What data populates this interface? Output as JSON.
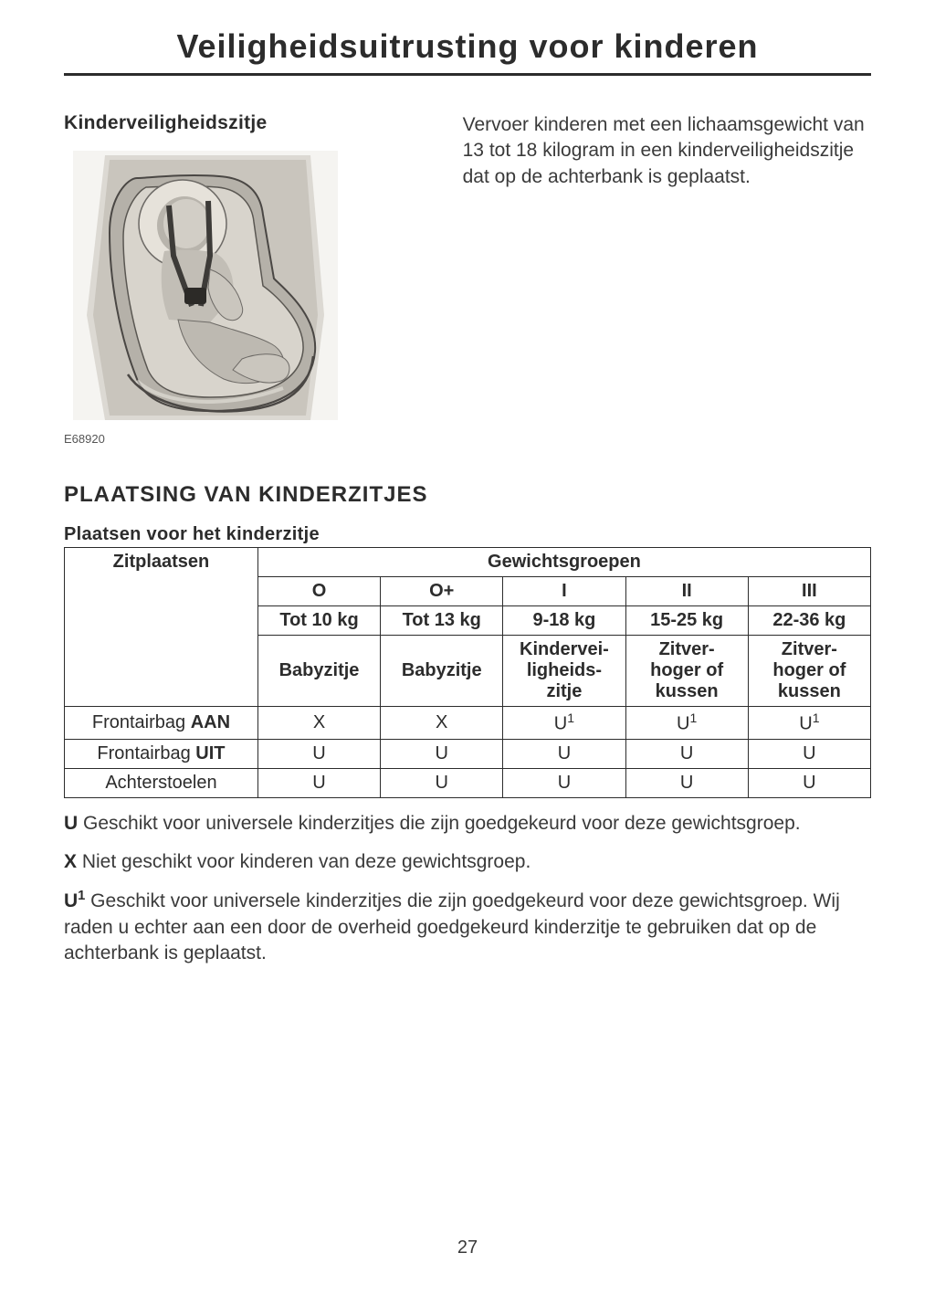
{
  "title": "Veiligheidsuitrusting voor kinderen",
  "section1": {
    "heading": "Kinderveiligheidszitje",
    "body": "Vervoer kinderen met een lichaamsgewicht van 13 tot 18 kilogram in een kinderveiligheidszitje dat op de achterbank is geplaatst.",
    "figure_ref": "E68920"
  },
  "section2": {
    "heading": "PLAATSING VAN KINDERZITJES",
    "table_heading": "Plaatsen voor het kinderzitje"
  },
  "table": {
    "col1_header": "Zitplaatsen",
    "group_header": "Gewichtsgroepen",
    "groups": [
      "O",
      "O+",
      "I",
      "II",
      "III"
    ],
    "weights": [
      "Tot 10 kg",
      "Tot 13 kg",
      "9-18 kg",
      "15-25 kg",
      "22-36 kg"
    ],
    "types": [
      "Babyzitje",
      "Babyzitje",
      "Kindervei-ligheids-zitje",
      "Zitver-hoger of kussen",
      "Zitver-hoger of kussen"
    ],
    "rows": [
      {
        "label_pre": "Frontairbag ",
        "label_bold": "AAN",
        "cells": [
          "X",
          "X",
          "U1",
          "U1",
          "U1"
        ]
      },
      {
        "label_pre": "Frontairbag ",
        "label_bold": "UIT",
        "cells": [
          "U",
          "U",
          "U",
          "U",
          "U"
        ]
      },
      {
        "label_pre": "Achterstoelen",
        "label_bold": "",
        "cells": [
          "U",
          "U",
          "U",
          "U",
          "U"
        ]
      }
    ]
  },
  "legend": {
    "u_key": "U",
    "u_text": " Geschikt voor universele kinderzitjes die zijn goedgekeurd voor deze gewichtsgroep.",
    "x_key": "X",
    "x_text": " Niet geschikt voor kinderen van deze gewichtsgroep.",
    "u1_key": "U",
    "u1_sup": "1",
    "u1_text": " Geschikt voor universele kinderzitjes die zijn goedgekeurd voor deze gewichtsgroep. Wij raden u echter aan een door de overheid goedgekeurd kinderzitje te gebruiken dat op de achterbank is geplaatst."
  },
  "page_number": "27",
  "illustration": {
    "bg": "#f2f1ef",
    "seat_dark": "#6d6a66",
    "seat_mid": "#a6a29c",
    "seat_light": "#cfcbc4",
    "shadow": "#3d3b38"
  }
}
